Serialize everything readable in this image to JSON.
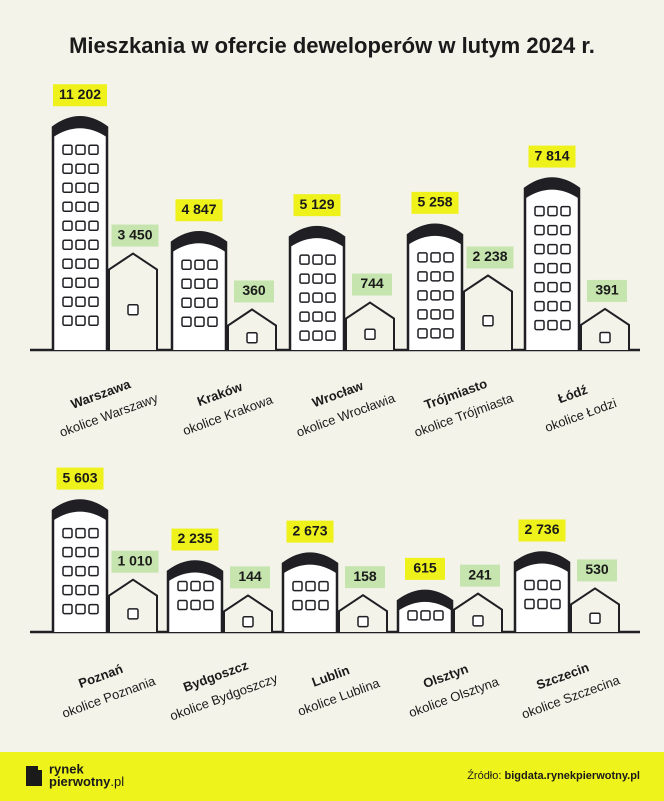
{
  "title": "Mieszkania w ofercie deweloperów w lutym 2024 r.",
  "chart_data": [
    {
      "type": "building-bar",
      "categories": [
        "Warszawa",
        "Kraków",
        "Wrocław",
        "Trójmiasto",
        "Łódź"
      ],
      "series": [
        {
          "color": "#eef21a",
          "values": [
            11202,
            4847,
            5129,
            5258,
            7814
          ],
          "value_labels": [
            "11 202",
            "4 847",
            "5 129",
            "5 258",
            "7 814"
          ]
        },
        {
          "color": "#c6e4ae",
          "values": [
            3450,
            360,
            744,
            2238,
            391
          ],
          "value_labels": [
            "3 450",
            "360",
            "744",
            "2 238",
            "391"
          ],
          "labels": [
            "okolice Warszawy",
            "okolice Krakowa",
            "okolice Wrocławia",
            "okolice Trójmiasta",
            "okolice Łodzi"
          ]
        }
      ]
    },
    {
      "type": "building-bar",
      "categories": [
        "Poznań",
        "Bydgoszcz",
        "Lublin",
        "Olsztyn",
        "Szczecin"
      ],
      "series": [
        {
          "color": "#eef21a",
          "values": [
            5603,
            2235,
            2673,
            615,
            2736
          ],
          "value_labels": [
            "5 603",
            "2 235",
            "2 673",
            "615",
            "2 736"
          ]
        },
        {
          "color": "#c6e4ae",
          "values": [
            1010,
            144,
            158,
            241,
            530
          ],
          "value_labels": [
            "1 010",
            "144",
            "158",
            "241",
            "530"
          ],
          "labels": [
            "okolice Poznania",
            "okolice Bydgoszczy",
            "okolice Lublina",
            "okolice Olsztyna",
            "okolice Szczecina"
          ]
        }
      ]
    }
  ],
  "footer": {
    "brand": [
      "rynek",
      "pierwotny",
      ".pl"
    ],
    "source_label": "Źródło:",
    "source_url": "bigdata.rynekpierwotny.pl"
  }
}
